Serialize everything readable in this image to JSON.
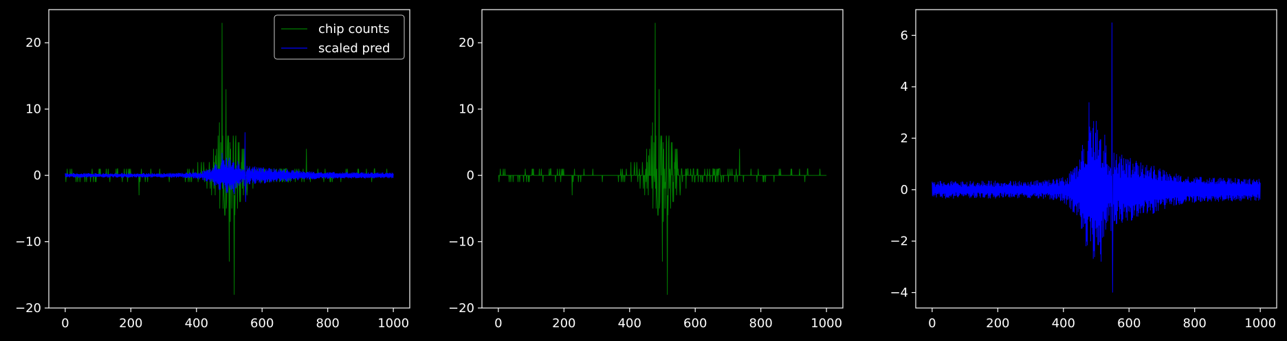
{
  "figure": {
    "background": "#000000",
    "foreground": "#ffffff"
  },
  "chart_data": [
    {
      "type": "line",
      "panel": "left",
      "title": "",
      "xlabel": "",
      "ylabel": "",
      "xlim": [
        -50,
        1050
      ],
      "ylim": [
        -20,
        25
      ],
      "xticks": [
        0,
        200,
        400,
        600,
        800,
        1000
      ],
      "yticks": [
        -20,
        -10,
        0,
        10,
        20
      ],
      "grid": false,
      "legend": "top-right",
      "series": [
        {
          "name": "chip counts",
          "color": "#008000",
          "style": "signed-sparse-spikes",
          "n_points": 1001,
          "peaks": [
            [
              478,
              23
            ],
            [
              490,
              13
            ],
            [
              515,
              -18
            ],
            [
              500,
              -13
            ],
            [
              470,
              8
            ],
            [
              735,
              4
            ],
            [
              225,
              -3
            ]
          ]
        },
        {
          "name": "scaled pred",
          "color": "#0000ff",
          "style": "dense-envelope",
          "n_points": 1001,
          "peaks": [
            [
              548,
              6.5
            ],
            [
              550,
              -4
            ],
            [
              478,
              3.4
            ],
            [
              515,
              -2.8
            ]
          ]
        }
      ]
    },
    {
      "type": "line",
      "panel": "middle",
      "title": "",
      "xlabel": "",
      "ylabel": "",
      "xlim": [
        -50,
        1050
      ],
      "ylim": [
        -20,
        25
      ],
      "xticks": [
        0,
        200,
        400,
        600,
        800,
        1000
      ],
      "yticks": [
        -20,
        -10,
        0,
        10,
        20
      ],
      "grid": false,
      "legend": "none",
      "series": [
        {
          "color": "#008000",
          "style": "signed-sparse-spikes",
          "n_points": 1001,
          "peaks": [
            [
              478,
              23
            ],
            [
              490,
              13
            ],
            [
              515,
              -18
            ],
            [
              500,
              -13
            ],
            [
              470,
              8
            ],
            [
              735,
              4
            ],
            [
              225,
              -3
            ]
          ]
        }
      ]
    },
    {
      "type": "line",
      "panel": "right",
      "title": "",
      "xlabel": "",
      "ylabel": "",
      "xlim": [
        -50,
        1050
      ],
      "ylim": [
        -4.6,
        7.0
      ],
      "xticks": [
        0,
        200,
        400,
        600,
        800,
        1000
      ],
      "yticks": [
        -4,
        -2,
        0,
        2,
        4,
        6
      ],
      "grid": false,
      "legend": "none",
      "series": [
        {
          "color": "#0000ff",
          "style": "dense-envelope",
          "n_points": 1001,
          "peaks": [
            [
              548,
              6.5
            ],
            [
              550,
              -4
            ],
            [
              478,
              3.4
            ],
            [
              515,
              -2.8
            ]
          ]
        }
      ]
    }
  ]
}
